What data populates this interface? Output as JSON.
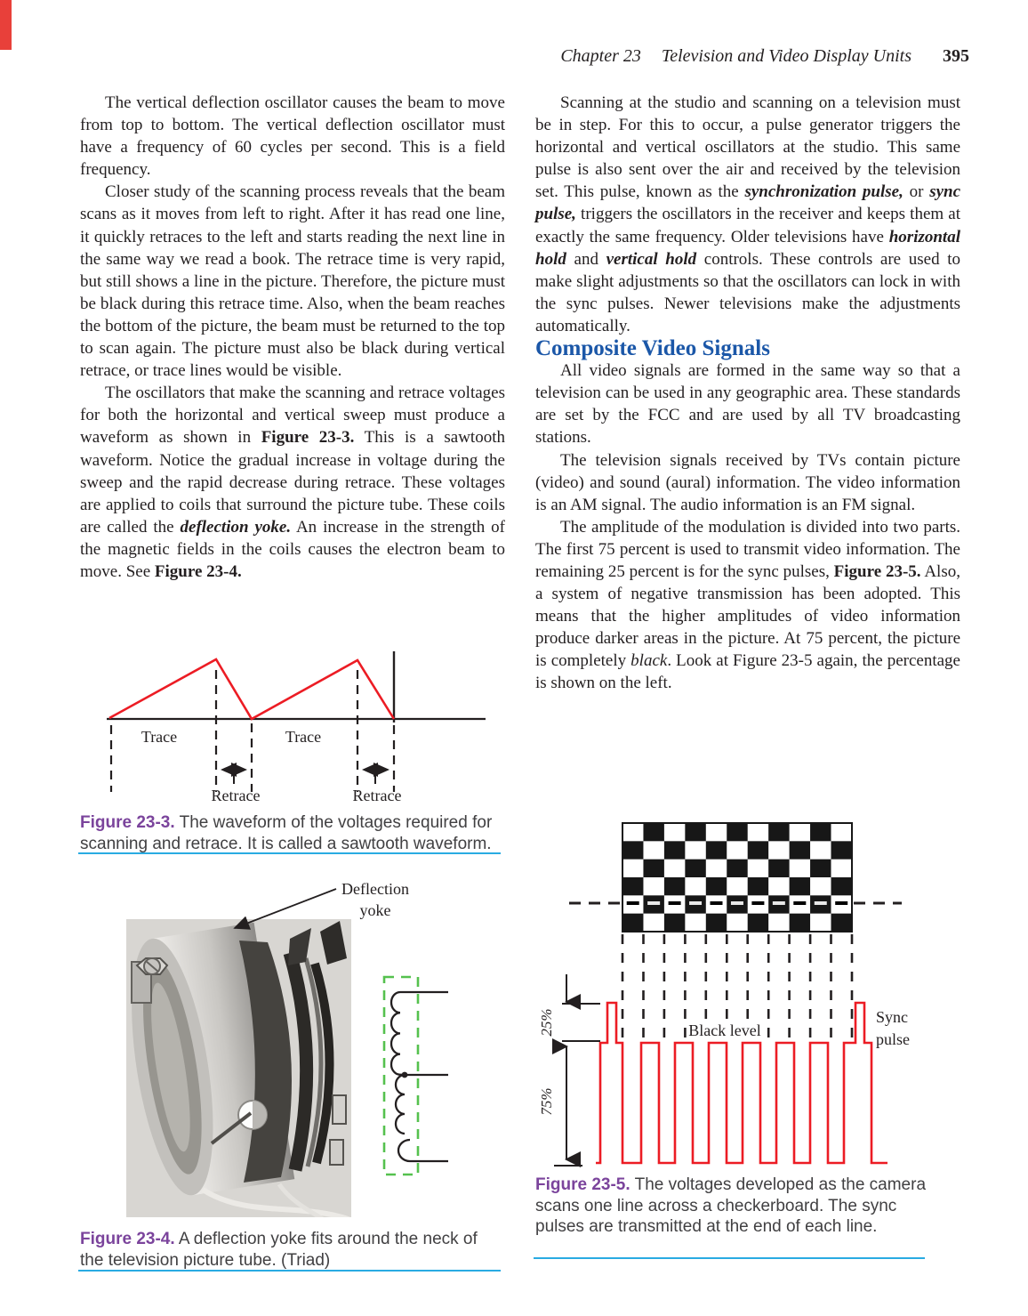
{
  "header": {
    "chapter": "Chapter 23",
    "title": "Television and Video Display Units",
    "page_number": "395"
  },
  "left_column": {
    "paragraphs": [
      [
        {
          "t": "The vertical deflection oscillator causes the beam to move from top to bottom. The vertical deflection oscillator must have a frequency of 60 cycles per second. This is a field frequency.",
          "s": ""
        }
      ],
      [
        {
          "t": "Closer study of the scanning process reveals that the beam scans as it moves from left to right. After it has read one line, it quickly retraces to the left and starts reading the next line in the same way we read a book. The retrace time is very rapid, but still shows a line in the picture. Therefore, the picture must be black during this retrace time. Also, when the beam reaches the bottom of the picture, the beam must be returned to the top to scan again. The picture must also be black during vertical retrace, or trace lines would be visible.",
          "s": ""
        }
      ],
      [
        {
          "t": "The oscillators that make the scanning and retrace voltages for both the horizontal and vertical sweep must produce a waveform as shown in ",
          "s": ""
        },
        {
          "t": "Figure 23-3.",
          "s": "b"
        },
        {
          "t": " This is a sawtooth waveform. Notice the gradual increase in voltage during the sweep and the rapid decrease during retrace. These voltages are applied to coils that surround the picture tube. These coils are called the ",
          "s": ""
        },
        {
          "t": "deflection yoke.",
          "s": "bi"
        },
        {
          "t": " An increase in the strength of the magnetic fields in the coils causes the electron beam to move. See ",
          "s": ""
        },
        {
          "t": "Figure 23-4.",
          "s": "b"
        }
      ]
    ]
  },
  "right_column": {
    "paragraph_intro": [
      {
        "t": "Scanning at the studio and scanning on a television must be in step. For this to occur, a pulse generator triggers the horizontal and vertical oscillators at the studio. This same pulse is also sent over the air and received by the television set. This pulse, known as the ",
        "s": ""
      },
      {
        "t": "synchronization pulse,",
        "s": "bi"
      },
      {
        "t": " or ",
        "s": ""
      },
      {
        "t": "sync pulse,",
        "s": "bi"
      },
      {
        "t": " triggers the oscillators in the receiver and keeps them at exactly the same frequency. Older televisions have ",
        "s": ""
      },
      {
        "t": "horizontal hold",
        "s": "bi"
      },
      {
        "t": " and ",
        "s": ""
      },
      {
        "t": "vertical hold",
        "s": "bi"
      },
      {
        "t": " controls. These controls are used to make slight adjustments so that the oscillators can lock in with the sync pulses. Newer televisions make the adjustments automatically.",
        "s": ""
      }
    ],
    "section_heading": "Composite Video Signals",
    "paragraphs": [
      [
        {
          "t": "All video signals are formed in the same way so that a television can be used in any geographic area. These standards are set by the FCC and are used by all TV broadcasting stations.",
          "s": ""
        }
      ],
      [
        {
          "t": "The television signals received by TVs contain picture (video) and sound (aural) information. The video information is an AM signal. The audio information is an FM signal.",
          "s": ""
        }
      ],
      [
        {
          "t": "The amplitude of the modulation is divided into two parts. The first 75 percent is used to transmit video information. The remaining 25 percent is for the sync pulses, ",
          "s": ""
        },
        {
          "t": "Figure 23-5.",
          "s": "b"
        },
        {
          "t": " Also, a system of negative transmission has been adopted. This means that the higher amplitudes of video information produce darker areas in the picture. At 75 percent, the picture is completely ",
          "s": ""
        },
        {
          "t": "black",
          "s": "i"
        },
        {
          "t": ". Look at Figure 23-5 again, the percentage is shown on the left.",
          "s": ""
        }
      ]
    ]
  },
  "figure_23_3": {
    "trace_label_1": "Trace",
    "trace_label_2": "Trace",
    "retrace_label_1": "Retrace",
    "retrace_label_2": "Retrace",
    "caption": [
      {
        "t": "Figure 23-3.",
        "s": "label"
      },
      {
        "t": " The waveform of the voltages required for scanning and retrace. It is called a sawtooth waveform.",
        "s": ""
      }
    ]
  },
  "figure_23_4": {
    "callout_line1": "Deflection",
    "callout_line2": "yoke",
    "caption": [
      {
        "t": "Figure 23-4.",
        "s": "label"
      },
      {
        "t": " A deflection yoke fits around the neck of the television picture tube. (Triad)",
        "s": ""
      }
    ]
  },
  "figure_23_5": {
    "pct_25": "25%",
    "pct_75": "75%",
    "black_level": "Black level",
    "sync_line1": "Sync",
    "sync_line2": "pulse",
    "caption": [
      {
        "t": "Figure 23-5.",
        "s": "label"
      },
      {
        "t": " The voltages developed as the camera scans one line across a checkerboard. The sync pulses are transmitted at the end of each line.",
        "s": ""
      }
    ]
  },
  "colors": {
    "heading_blue": "#1b57a8",
    "caption_purple": "#7b449c",
    "rule_cyan": "#29abe2",
    "waveform_red": "#ec1c24",
    "coil_green": "#55c14e"
  }
}
